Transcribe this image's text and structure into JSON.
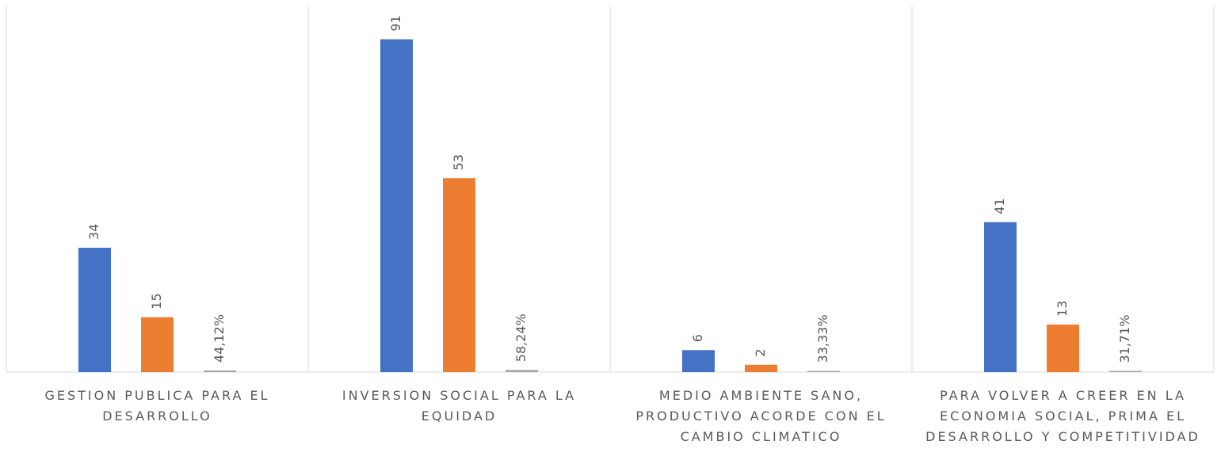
{
  "chart_data": {
    "type": "bar",
    "categories": [
      "GESTION PUBLICA PARA EL DESARROLLO",
      "INVERSION SOCIAL PARA LA EQUIDAD",
      "MEDIO AMBIENTE SANO, PRODUCTIVO ACORDE CON EL CAMBIO CLIMATICO",
      "PARA VOLVER A CREER EN LA ECONOMIA SOCIAL, PRIMA EL DESARROLLO Y COMPETITIVIDAD"
    ],
    "series": [
      {
        "color": "#4472c4",
        "values": [
          34,
          91,
          6,
          41
        ]
      },
      {
        "color": "#ed7d31",
        "values": [
          15,
          53,
          2,
          13
        ]
      },
      {
        "color": "#a5a5a5",
        "values": [
          0.4412,
          0.5824,
          0.3333,
          0.3171
        ],
        "value_labels": [
          "44,12%",
          "58,24%",
          "33,33%",
          "31,71%"
        ]
      }
    ],
    "ylim": [
      0,
      100
    ]
  }
}
